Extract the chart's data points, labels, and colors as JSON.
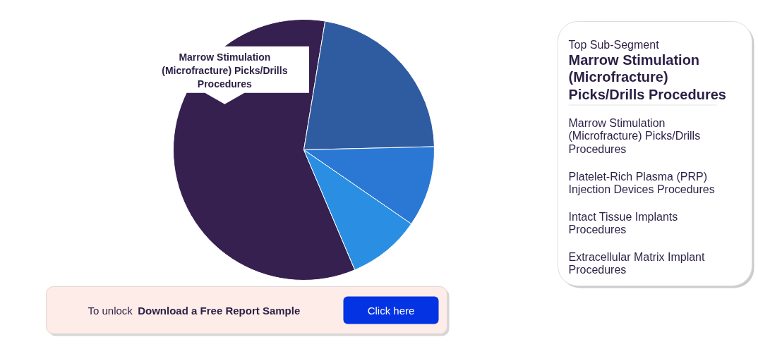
{
  "chart_data": [
    {
      "type": "pie",
      "categories": [
        "Marrow Stimulation (Microfracture) Picks/Drills Procedures",
        null,
        null,
        null
      ],
      "values": [
        59,
        22,
        10,
        9
      ],
      "colors": [
        "#352050",
        "#2f5ca0",
        "#2b78d4",
        "#2a8fe2"
      ],
      "annotations": [
        "To unlock",
        "Download a Free Report Sample",
        "Click here"
      ]
    },
    {
      "type": "other",
      "title": "Top Sub-Segment",
      "subtitle": "Marrow Stimulation (Microfracture) Picks/Drills Procedures",
      "annotations": [
        "Marrow Stimulation (Microfracture) Picks/Drills Procedures",
        "Platelet-Rich Plasma (PRP) Injection Devices Procedures",
        "Intact Tissue Implants Procedures",
        "Extracellular Matrix Implant Procedures"
      ]
    }
  ]
}
